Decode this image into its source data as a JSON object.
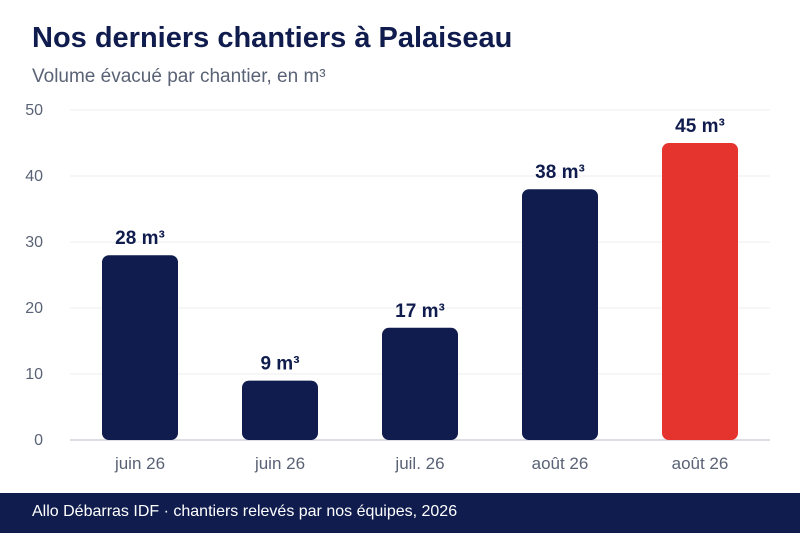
{
  "title": "Nos derniers chantiers à Palaiseau",
  "subtitle": "Volume évacué par chantier, en m³",
  "footer": "Allo Débarras IDF · chantiers relevés par nos équipes, 2026",
  "colors": {
    "bar": "#0f1c4d",
    "highlight": "#e5332e",
    "title": "#0f1c4d",
    "subtitle": "#5a6275",
    "axis_text": "#5a6275",
    "grid": "#eeeeee",
    "footer_bg": "#0f1c4d"
  },
  "chart_data": {
    "type": "bar",
    "title": "Nos derniers chantiers à Palaiseau",
    "subtitle": "Volume évacué par chantier, en m³",
    "xlabel": "",
    "ylabel": "",
    "categories": [
      "juin 26",
      "juin 26",
      "juil. 26",
      "août 26",
      "août 26"
    ],
    "values": [
      28,
      9,
      17,
      38,
      45
    ],
    "data_labels": [
      "28 m³",
      "9 m³",
      "17 m³",
      "38 m³",
      "45 m³"
    ],
    "highlight_index": 4,
    "ylim": [
      0,
      50
    ],
    "yticks": [
      0,
      10,
      20,
      30,
      40,
      50
    ],
    "grid": true,
    "legend": "none"
  }
}
